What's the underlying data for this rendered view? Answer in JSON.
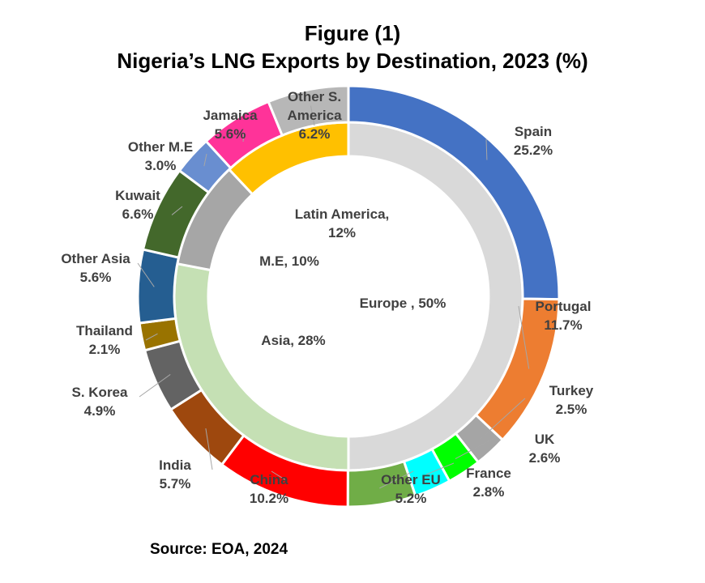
{
  "chart_data": {
    "type": "donut",
    "title": "Figure (1)",
    "subtitle": "Nigeria’s LNG Exports by Destination, 2023 (%)",
    "source": "Source: EOA, 2024",
    "unit": "%",
    "inner_ring": [
      {
        "name": "Europe",
        "label": "Europe , 50%",
        "value": 50,
        "color": "#d9d9d9"
      },
      {
        "name": "Asia",
        "label": "Asia, 28%",
        "value": 28,
        "color": "#c5e0b4"
      },
      {
        "name": "M.E",
        "label": "M.E, 10%",
        "value": 10,
        "color": "#a6a6a6"
      },
      {
        "name": "Latin America",
        "label": "Latin America,",
        "label2": "12%",
        "value": 12,
        "color": "#ffc000"
      }
    ],
    "outer_ring": [
      {
        "name": "Spain",
        "value": 25.2,
        "value_label": "25.2%",
        "color": "#4472c4"
      },
      {
        "name": "Portugal",
        "value": 11.7,
        "value_label": "11.7%",
        "color": "#ed7d31"
      },
      {
        "name": "Turkey",
        "value": 2.5,
        "value_label": "2.5%",
        "color": "#a5a5a5"
      },
      {
        "name": "UK",
        "value": 2.6,
        "value_label": "2.6%",
        "color": "#00ff00"
      },
      {
        "name": "France",
        "value": 2.8,
        "value_label": "2.8%",
        "color": "#00ffff"
      },
      {
        "name": "Other EU",
        "value": 5.2,
        "value_label": "5.2%",
        "color": "#70ad47"
      },
      {
        "name": "China",
        "value": 10.2,
        "value_label": "10.2%",
        "color": "#ff0000"
      },
      {
        "name": "India",
        "value": 5.7,
        "value_label": "5.7%",
        "color": "#9e480e"
      },
      {
        "name": "S. Korea",
        "value": 4.9,
        "value_label": "4.9%",
        "color": "#636363"
      },
      {
        "name": "Thailand",
        "value": 2.1,
        "value_label": "2.1%",
        "color": "#997300"
      },
      {
        "name": "Other Asia",
        "value": 5.6,
        "value_label": "5.6%",
        "color": "#255e91"
      },
      {
        "name": "Kuwait",
        "value": 6.6,
        "value_label": "6.6%",
        "color": "#43682b"
      },
      {
        "name": "Other M.E",
        "value": 3.0,
        "value_label": "3.0%",
        "color": "#698ed0"
      },
      {
        "name": "Jamaica",
        "value": 5.6,
        "value_label": "5.6%",
        "color": "#ff3399"
      },
      {
        "name": "Other S. America",
        "name_line1": "Other S.",
        "name_line2": "America",
        "value": 6.2,
        "value_label": "6.2%",
        "color": "#b7b7b7"
      }
    ]
  }
}
